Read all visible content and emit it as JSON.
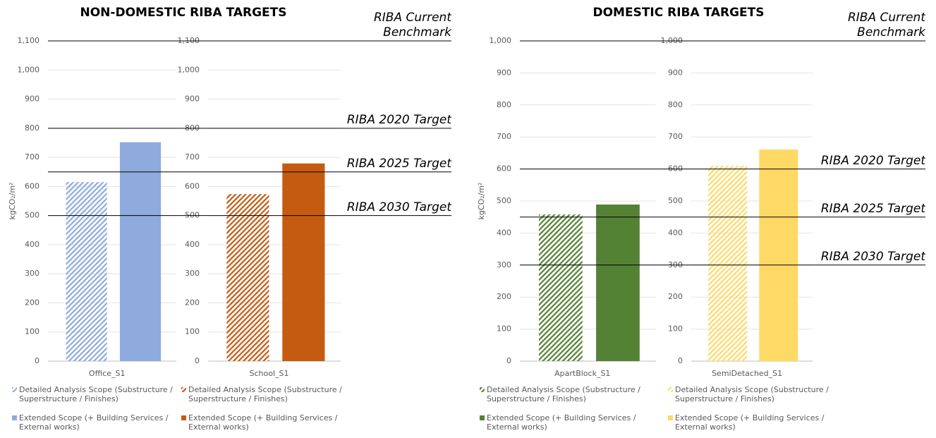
{
  "chart_data": [
    {
      "type": "bar",
      "title": "NON-DOMESTIC RIBA TARGETS",
      "y_label": "kgCO₂/m²",
      "ylim": [
        0,
        1100
      ],
      "yticks": [
        0,
        100,
        200,
        300,
        400,
        500,
        600,
        700,
        800,
        900,
        {
          "value": 1000,
          "label": "1,000"
        },
        {
          "value": 1100,
          "label": "1,100"
        }
      ],
      "grid": true,
      "reference_lines": [
        {
          "label": "RIBA Current Benchmark",
          "value": 1100
        },
        {
          "label": "RIBA 2020 Target",
          "value": 800
        },
        {
          "label": "RIBA 2025 Target",
          "value": 650
        },
        {
          "label": "RIBA 2030 Target",
          "value": 500
        }
      ],
      "charts": [
        {
          "categories": [
            "Office_S1"
          ],
          "series": [
            {
              "name": "Detailed Analysis Scope (Substructure / Superstructure / Finishes)",
              "color": "#8faadc",
              "hatch": true,
              "values": [
                615
              ]
            },
            {
              "name": "Extended Scope (+ Building Services / External works)",
              "color": "#8faadc",
              "hatch": false,
              "values": [
                752
              ]
            }
          ]
        },
        {
          "categories": [
            "School_S1"
          ],
          "series": [
            {
              "name": "Detailed Analysis Scope (Substructure / Superstructure / Finishes)",
              "color": "#c55a11",
              "hatch": true,
              "values": [
                574
              ]
            },
            {
              "name": "Extended Scope (+ Building Services / External works)",
              "color": "#c55a11",
              "hatch": false,
              "values": [
                679
              ]
            }
          ]
        }
      ]
    },
    {
      "type": "bar",
      "title": "DOMESTIC RIBA TARGETS",
      "y_label": "kgCO₂/m²",
      "ylim": [
        0,
        1000
      ],
      "yticks": [
        0,
        100,
        200,
        300,
        400,
        500,
        600,
        700,
        800,
        900,
        {
          "value": 1000,
          "label": "1,000"
        }
      ],
      "grid": true,
      "reference_lines": [
        {
          "label": "RIBA Current Benchmark",
          "value": 1000
        },
        {
          "label": "RIBA 2020 Target",
          "value": 600
        },
        {
          "label": "RIBA 2025 Target",
          "value": 450
        },
        {
          "label": "RIBA 2030 Target",
          "value": 300
        }
      ],
      "charts": [
        {
          "categories": [
            "ApartBlock_S1"
          ],
          "series": [
            {
              "name": "Detailed Analysis Scope (Substructure / Superstructure / Finishes)",
              "color": "#548235",
              "hatch": true,
              "values": [
                458
              ]
            },
            {
              "name": "Extended Scope (+ Building Services / External works)",
              "color": "#548235",
              "hatch": false,
              "values": [
                489
              ]
            }
          ]
        },
        {
          "categories": [
            "SemiDetached_S1"
          ],
          "series": [
            {
              "name": "Detailed Analysis Scope (Substructure / Superstructure / Finishes)",
              "color": "#ffd966",
              "hatch": true,
              "values": [
                610
              ]
            },
            {
              "name": "Extended Scope (+ Building Services / External works)",
              "color": "#ffd966",
              "hatch": false,
              "values": [
                661
              ]
            }
          ]
        }
      ]
    }
  ]
}
